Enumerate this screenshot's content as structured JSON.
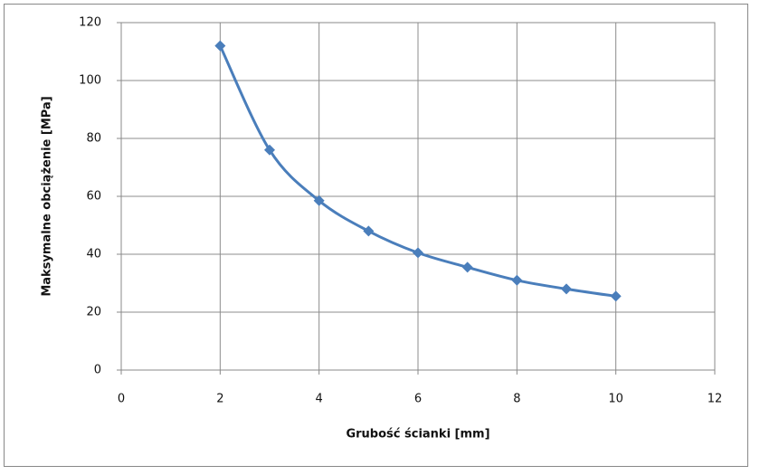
{
  "chart_data": {
    "type": "line",
    "x_label": "Grubość ścianki [mm]",
    "y_label": "Maksymalne obciążenie  [MPa]",
    "x": [
      2,
      3,
      4,
      5,
      6,
      7,
      8,
      9,
      10
    ],
    "series": [
      {
        "color": "#4a7ebb",
        "values": [
          112,
          76,
          58.5,
          48,
          40.5,
          35.5,
          31,
          28,
          25.5
        ]
      }
    ],
    "xlim": [
      0,
      12
    ],
    "xticks": [
      0,
      2,
      4,
      6,
      8,
      10,
      12
    ],
    "ylim": [
      0,
      120
    ],
    "yticks": [
      0,
      20,
      40,
      60,
      80,
      100,
      120
    ],
    "grid": true,
    "smooth": true
  }
}
